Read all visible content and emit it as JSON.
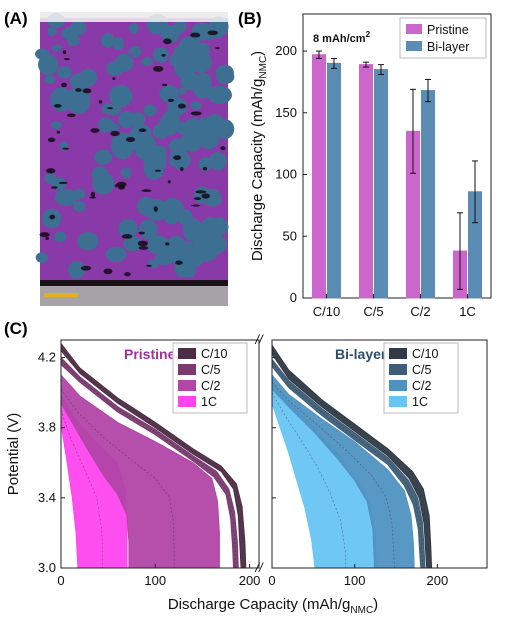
{
  "panels": {
    "a_label": "(A)",
    "b_label": "(B)",
    "c_label": "(C)"
  },
  "colors": {
    "pristine": "#cc66cc",
    "bilayer": "#5b8db4",
    "pristine_title": "#a0329b",
    "bilayer_title": "#2e4e6e",
    "micrograph_base": "#3d6f93",
    "micrograph_binder": "#8a3aa8",
    "micrograph_void": "#140a18"
  },
  "chart_data": [
    {
      "type": "bar",
      "panel": "B",
      "annotation": "8 mAh/cm",
      "annotation_sup": "2",
      "categories": [
        "C/10",
        "C/5",
        "C/2",
        "1C"
      ],
      "series": [
        {
          "name": "Pristine",
          "color": "#cc66cc",
          "values": [
            197,
            189,
            135,
            38
          ],
          "errors": [
            3,
            2,
            34,
            31
          ]
        },
        {
          "name": "Bi-layer",
          "color": "#5b8db4",
          "values": [
            190,
            185,
            168,
            86
          ],
          "errors": [
            4,
            4,
            9,
            25
          ]
        }
      ],
      "ylabel": "Discharge Capacity (mAh/g",
      "ylabel_sub": "NMC",
      "ylabel_end": ")",
      "ylim": [
        0,
        230
      ],
      "yticks": [
        "0",
        "50",
        "100",
        "150",
        "200"
      ],
      "legend_position": "top-right"
    },
    {
      "type": "area",
      "panel": "C",
      "xlabel": "Discharge Capacity (mAh/g",
      "xlabel_sub": "NMC",
      "xlabel_end": ")",
      "ylabel": "Potential (V)",
      "ylim": [
        3.0,
        4.3
      ],
      "yticks": [
        "3.0",
        "3.4",
        "3.8",
        "4.2"
      ],
      "break_mark": "//",
      "subplots": [
        {
          "title": "Pristine",
          "xlim": [
            0,
            210
          ],
          "xticks": [
            "0",
            "100",
            "200"
          ],
          "legend": [
            "C/10",
            "C/5",
            "C/2",
            "1C"
          ],
          "series": [
            {
              "name": "C/10",
              "color": "#4d2c45",
              "fill": "#4d2c45",
              "upper": [
                [
                  0,
                  4.28
                ],
                [
                  20,
                  4.14
                ],
                [
                  60,
                  3.97
                ],
                [
                  100,
                  3.83
                ],
                [
                  140,
                  3.68
                ],
                [
                  170,
                  3.58
                ],
                [
                  186,
                  3.48
                ],
                [
                  192,
                  3.35
                ],
                [
                  195,
                  3.15
                ],
                [
                  196,
                  3.0
                ]
              ],
              "lower": [
                [
                  0,
                  4.24
                ],
                [
                  20,
                  4.11
                ],
                [
                  60,
                  3.94
                ],
                [
                  100,
                  3.8
                ],
                [
                  140,
                  3.65
                ],
                [
                  170,
                  3.55
                ],
                [
                  183,
                  3.45
                ],
                [
                  188,
                  3.3
                ],
                [
                  190,
                  3.1
                ],
                [
                  191,
                  3.0
                ]
              ]
            },
            {
              "name": "C/5",
              "color": "#7a3a6f",
              "fill": "#7a3a6f",
              "upper": [
                [
                  0,
                  4.2
                ],
                [
                  20,
                  4.09
                ],
                [
                  60,
                  3.92
                ],
                [
                  100,
                  3.79
                ],
                [
                  140,
                  3.64
                ],
                [
                  165,
                  3.55
                ],
                [
                  178,
                  3.45
                ],
                [
                  184,
                  3.32
                ],
                [
                  187,
                  3.15
                ],
                [
                  188,
                  3.0
                ]
              ],
              "lower": [
                [
                  0,
                  4.16
                ],
                [
                  20,
                  4.06
                ],
                [
                  60,
                  3.89
                ],
                [
                  100,
                  3.76
                ],
                [
                  140,
                  3.61
                ],
                [
                  162,
                  3.52
                ],
                [
                  175,
                  3.42
                ],
                [
                  180,
                  3.28
                ],
                [
                  182,
                  3.12
                ],
                [
                  183,
                  3.0
                ]
              ]
            },
            {
              "name": "C/2",
              "color": "#b245a6",
              "fill": "#b245a6",
              "upper": [
                [
                  0,
                  4.1
                ],
                [
                  20,
                  3.98
                ],
                [
                  60,
                  3.83
                ],
                [
                  100,
                  3.72
                ],
                [
                  140,
                  3.6
                ],
                [
                  160,
                  3.51
                ],
                [
                  166,
                  3.38
                ],
                [
                  168,
                  3.2
                ],
                [
                  168,
                  3.0
                ]
              ],
              "lower": [
                [
                  0,
                  3.94
                ],
                [
                  15,
                  3.8
                ],
                [
                  30,
                  3.66
                ],
                [
                  45,
                  3.53
                ],
                [
                  60,
                  3.42
                ],
                [
                  70,
                  3.3
                ],
                [
                  72,
                  3.15
                ],
                [
                  72,
                  3.0
                ]
              ]
            },
            {
              "name": "1C",
              "color": "#ff44ee",
              "fill": "#ff44ee",
              "upper": [
                [
                  0,
                  3.98
                ],
                [
                  15,
                  3.85
                ],
                [
                  40,
                  3.7
                ],
                [
                  60,
                  3.6
                ],
                [
                  68,
                  3.45
                ],
                [
                  70,
                  3.25
                ],
                [
                  70,
                  3.0
                ]
              ],
              "lower": [
                [
                  0,
                  3.82
                ],
                [
                  6,
                  3.62
                ],
                [
                  12,
                  3.4
                ],
                [
                  16,
                  3.2
                ],
                [
                  18,
                  3.0
                ]
              ]
            }
          ]
        },
        {
          "title": "Bi-layer",
          "xlim": [
            0,
            260
          ],
          "xticks": [
            "0",
            "100",
            "200"
          ],
          "legend": [
            "C/10",
            "C/5",
            "C/2",
            "1C"
          ],
          "series": [
            {
              "name": "C/10",
              "color": "#2f3a46",
              "fill": "#2f3a46",
              "upper": [
                [
                  0,
                  4.27
                ],
                [
                  20,
                  4.13
                ],
                [
                  60,
                  3.96
                ],
                [
                  100,
                  3.82
                ],
                [
                  140,
                  3.68
                ],
                [
                  170,
                  3.55
                ],
                [
                  183,
                  3.45
                ],
                [
                  190,
                  3.3
                ],
                [
                  192,
                  3.12
                ],
                [
                  193,
                  3.0
                ]
              ],
              "lower": [
                [
                  0,
                  4.22
                ],
                [
                  20,
                  4.08
                ],
                [
                  60,
                  3.92
                ],
                [
                  100,
                  3.78
                ],
                [
                  140,
                  3.64
                ],
                [
                  166,
                  3.51
                ],
                [
                  178,
                  3.4
                ],
                [
                  184,
                  3.25
                ],
                [
                  186,
                  3.08
                ],
                [
                  187,
                  3.0
                ]
              ]
            },
            {
              "name": "C/5",
              "color": "#3e5d78",
              "fill": "#3e5d78",
              "upper": [
                [
                  0,
                  4.19
                ],
                [
                  20,
                  4.07
                ],
                [
                  60,
                  3.91
                ],
                [
                  100,
                  3.77
                ],
                [
                  140,
                  3.63
                ],
                [
                  165,
                  3.5
                ],
                [
                  176,
                  3.4
                ],
                [
                  182,
                  3.26
                ],
                [
                  184,
                  3.1
                ],
                [
                  185,
                  3.0
                ]
              ],
              "lower": [
                [
                  0,
                  4.15
                ],
                [
                  20,
                  4.03
                ],
                [
                  60,
                  3.87
                ],
                [
                  100,
                  3.73
                ],
                [
                  140,
                  3.59
                ],
                [
                  160,
                  3.47
                ],
                [
                  171,
                  3.36
                ],
                [
                  177,
                  3.22
                ],
                [
                  179,
                  3.06
                ],
                [
                  180,
                  3.0
                ]
              ]
            },
            {
              "name": "C/2",
              "color": "#4f92c2",
              "fill": "#4f92c2",
              "upper": [
                [
                  0,
                  4.1
                ],
                [
                  20,
                  3.99
                ],
                [
                  60,
                  3.85
                ],
                [
                  100,
                  3.72
                ],
                [
                  140,
                  3.56
                ],
                [
                  160,
                  3.44
                ],
                [
                  168,
                  3.3
                ],
                [
                  171,
                  3.14
                ],
                [
                  172,
                  3.0
                ]
              ],
              "lower": [
                [
                  0,
                  4.02
                ],
                [
                  20,
                  3.92
                ],
                [
                  50,
                  3.78
                ],
                [
                  80,
                  3.62
                ],
                [
                  100,
                  3.5
                ],
                [
                  115,
                  3.38
                ],
                [
                  122,
                  3.22
                ],
                [
                  124,
                  3.0
                ]
              ]
            },
            {
              "name": "1C",
              "color": "#66c5f2",
              "fill": "#66c5f2",
              "upper": [
                [
                  0,
                  4.06
                ],
                [
                  20,
                  3.95
                ],
                [
                  50,
                  3.8
                ],
                [
                  80,
                  3.65
                ],
                [
                  100,
                  3.52
                ],
                [
                  118,
                  3.38
                ],
                [
                  125,
                  3.2
                ],
                [
                  126,
                  3.0
                ]
              ],
              "lower": [
                [
                  0,
                  3.94
                ],
                [
                  10,
                  3.8
                ],
                [
                  20,
                  3.66
                ],
                [
                  30,
                  3.5
                ],
                [
                  40,
                  3.34
                ],
                [
                  48,
                  3.16
                ],
                [
                  52,
                  3.0
                ]
              ]
            }
          ]
        }
      ]
    }
  ]
}
